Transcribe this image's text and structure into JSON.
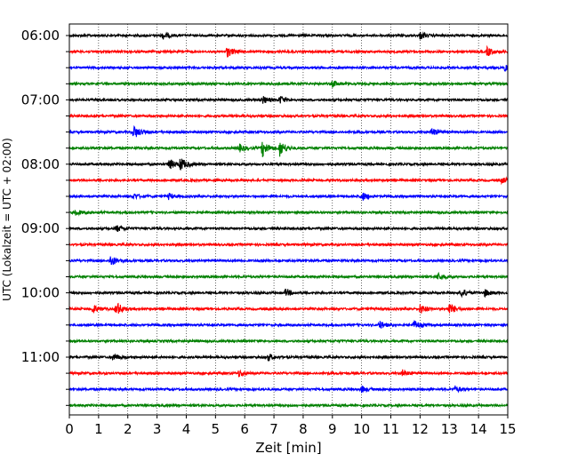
{
  "chart_data": {
    "type": "line",
    "title": "",
    "xlabel": "Zeit  [min]",
    "ylabel": "UTC (Lokalzeit = UTC + 02:00)",
    "xlim": [
      0,
      15
    ],
    "x_ticks": [
      "0",
      "1",
      "2",
      "3",
      "4",
      "5",
      "6",
      "7",
      "8",
      "9",
      "10",
      "11",
      "12",
      "13",
      "14",
      "15"
    ],
    "y_tick_labels": [
      "06:00",
      "07:00",
      "08:00",
      "09:00",
      "10:00",
      "11:00"
    ],
    "grid": "vertical dotted at each minute",
    "trace_interval_min": 15,
    "colors_cycle": [
      "#000000",
      "#ff0000",
      "#0000ff",
      "#008000"
    ],
    "series": [
      {
        "start": "06:00",
        "color": "#000000",
        "events": [
          {
            "t": 3.2,
            "amp": 1.2
          },
          {
            "t": 12.0,
            "amp": 1.2
          }
        ]
      },
      {
        "start": "06:15",
        "color": "#ff0000",
        "events": [
          {
            "t": 5.4,
            "amp": 1.8
          },
          {
            "t": 14.3,
            "amp": 1.6
          }
        ]
      },
      {
        "start": "06:30",
        "color": "#0000ff",
        "events": [
          {
            "t": 14.9,
            "amp": 1.2
          }
        ]
      },
      {
        "start": "06:45",
        "color": "#008000",
        "events": [
          {
            "t": 9.0,
            "amp": 1.0
          }
        ]
      },
      {
        "start": "07:00",
        "color": "#000000",
        "events": [
          {
            "t": 6.6,
            "amp": 1.4
          },
          {
            "t": 7.2,
            "amp": 1.4
          }
        ]
      },
      {
        "start": "07:15",
        "color": "#ff0000",
        "events": []
      },
      {
        "start": "07:30",
        "color": "#0000ff",
        "events": [
          {
            "t": 2.2,
            "amp": 2.4
          },
          {
            "t": 12.4,
            "amp": 1.4
          }
        ]
      },
      {
        "start": "07:45",
        "color": "#008000",
        "events": [
          {
            "t": 5.8,
            "amp": 1.4
          },
          {
            "t": 6.6,
            "amp": 3.0
          },
          {
            "t": 7.2,
            "amp": 2.8
          }
        ]
      },
      {
        "start": "08:00",
        "color": "#000000",
        "events": [
          {
            "t": 3.4,
            "amp": 2.0
          },
          {
            "t": 3.8,
            "amp": 2.4
          }
        ]
      },
      {
        "start": "08:15",
        "color": "#ff0000",
        "events": [
          {
            "t": 14.8,
            "amp": 1.0
          }
        ]
      },
      {
        "start": "08:30",
        "color": "#0000ff",
        "events": [
          {
            "t": 2.2,
            "amp": 1.0
          },
          {
            "t": 3.4,
            "amp": 1.0
          },
          {
            "t": 10.0,
            "amp": 1.6
          }
        ]
      },
      {
        "start": "08:45",
        "color": "#008000",
        "events": [
          {
            "t": 0.2,
            "amp": 1.0
          }
        ]
      },
      {
        "start": "09:00",
        "color": "#000000",
        "events": [
          {
            "t": 1.6,
            "amp": 1.2
          }
        ]
      },
      {
        "start": "09:15",
        "color": "#ff0000",
        "events": []
      },
      {
        "start": "09:30",
        "color": "#0000ff",
        "events": [
          {
            "t": 1.4,
            "amp": 2.0
          }
        ]
      },
      {
        "start": "09:45",
        "color": "#008000",
        "events": [
          {
            "t": 12.6,
            "amp": 1.2
          }
        ]
      },
      {
        "start": "10:00",
        "color": "#000000",
        "events": [
          {
            "t": 7.4,
            "amp": 1.2
          },
          {
            "t": 13.4,
            "amp": 1.6
          },
          {
            "t": 14.2,
            "amp": 1.2
          }
        ]
      },
      {
        "start": "10:15",
        "color": "#ff0000",
        "events": [
          {
            "t": 0.8,
            "amp": 1.4
          },
          {
            "t": 1.6,
            "amp": 2.6
          },
          {
            "t": 12.0,
            "amp": 1.6
          },
          {
            "t": 13.0,
            "amp": 2.0
          }
        ]
      },
      {
        "start": "10:30",
        "color": "#0000ff",
        "events": [
          {
            "t": 10.6,
            "amp": 1.4
          },
          {
            "t": 11.8,
            "amp": 1.6
          }
        ]
      },
      {
        "start": "10:45",
        "color": "#008000",
        "events": []
      },
      {
        "start": "11:00",
        "color": "#000000",
        "events": [
          {
            "t": 1.5,
            "amp": 1.2
          },
          {
            "t": 6.8,
            "amp": 1.2
          }
        ]
      },
      {
        "start": "11:15",
        "color": "#ff0000",
        "events": [
          {
            "t": 5.8,
            "amp": 1.2
          },
          {
            "t": 11.4,
            "amp": 1.0
          }
        ]
      },
      {
        "start": "11:30",
        "color": "#0000ff",
        "events": [
          {
            "t": 10.0,
            "amp": 1.0
          },
          {
            "t": 13.2,
            "amp": 1.0
          }
        ]
      },
      {
        "start": "11:45",
        "color": "#008000",
        "events": []
      }
    ]
  }
}
